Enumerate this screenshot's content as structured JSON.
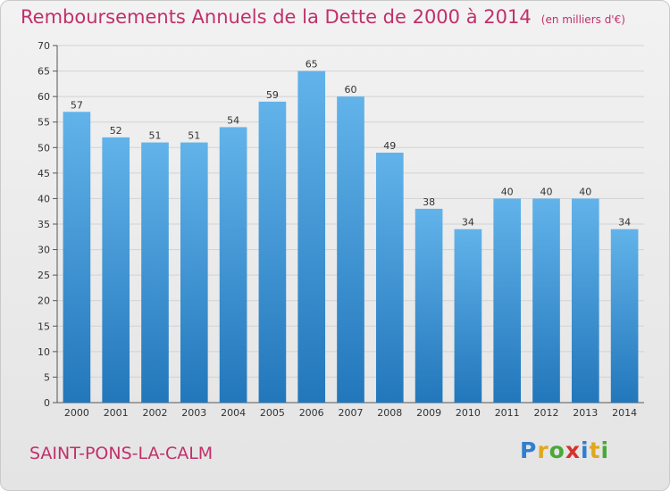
{
  "header": {
    "title": "Remboursements Annuels de la Dette de 2000 à 2014",
    "unit": "(en milliers d'€)"
  },
  "footer": {
    "commune": "SAINT-PONS-LA-CALM",
    "logo_letters": [
      "P",
      "r",
      "o",
      "x",
      "i",
      "t",
      "i"
    ]
  },
  "colors": {
    "title": "#c0306a",
    "bar_top": "#62b3ea",
    "bar_bottom": "#2277bb",
    "grid": "#d2d2d2"
  },
  "chart_data": {
    "type": "bar",
    "title": "Remboursements Annuels de la Dette de 2000 à 2014",
    "subtitle": "(en milliers d'€)",
    "xlabel": "",
    "ylabel": "",
    "categories": [
      "2000",
      "2001",
      "2002",
      "2003",
      "2004",
      "2005",
      "2006",
      "2007",
      "2008",
      "2009",
      "2010",
      "2011",
      "2012",
      "2013",
      "2014"
    ],
    "values": [
      57,
      52,
      51,
      51,
      54,
      59,
      65,
      60,
      49,
      38,
      34,
      40,
      40,
      40,
      34
    ],
    "ylim": [
      0,
      70
    ],
    "yticks": [
      0,
      5,
      10,
      15,
      20,
      25,
      30,
      35,
      40,
      45,
      50,
      55,
      60,
      65,
      70
    ],
    "grid": true,
    "data_labels": true
  }
}
